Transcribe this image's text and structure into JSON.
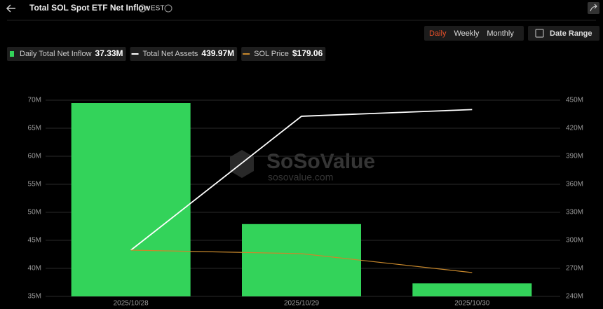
{
  "header": {
    "title": "Total SOL Spot ETF Net Inflow",
    "timezone": "EST"
  },
  "controls": {
    "periods": [
      "Daily",
      "Weekly",
      "Monthly"
    ],
    "active_period": "Daily",
    "date_range": "Date Range"
  },
  "watermark": {
    "brand": "SoSoValue",
    "url": "sosovalue.com"
  },
  "chart_data": {
    "type": "combo",
    "categories": [
      "2025/10/28",
      "2025/10/29",
      "2025/10/30"
    ],
    "series": [
      {
        "name": "Daily Total Net Inflow",
        "type": "bar",
        "color": "#33d35a",
        "axis": "y",
        "values": [
          69500000,
          47900000,
          37330000
        ],
        "value_labels": [
          null,
          null,
          "37.33M"
        ]
      },
      {
        "name": "Total Net Assets",
        "type": "line",
        "color": "#ffffff",
        "axis": "y2",
        "values": [
          289500000,
          432800000,
          439970000
        ],
        "value_labels": [
          null,
          null,
          "439.97M"
        ]
      },
      {
        "name": "SOL Price",
        "type": "line",
        "color": "#c8882c",
        "axis": "y3",
        "values": [
          195.0,
          192.5,
          179.06
        ],
        "value_labels": [
          null,
          null,
          "$179.06"
        ]
      }
    ],
    "ylim": [
      35000000,
      70000000
    ],
    "yticks": [
      {
        "value": 35000000,
        "label": "35M"
      },
      {
        "value": 40000000,
        "label": "40M"
      },
      {
        "value": 45000000,
        "label": "45M"
      },
      {
        "value": 50000000,
        "label": "50M"
      },
      {
        "value": 55000000,
        "label": "55M"
      },
      {
        "value": 60000000,
        "label": "60M"
      },
      {
        "value": 65000000,
        "label": "65M"
      },
      {
        "value": 70000000,
        "label": "70M"
      }
    ],
    "y2lim": [
      240000000,
      450000000
    ],
    "y2ticks": [
      {
        "value": 240000000,
        "label": "240M"
      },
      {
        "value": 270000000,
        "label": "270M"
      },
      {
        "value": 300000000,
        "label": "300M"
      },
      {
        "value": 330000000,
        "label": "330M"
      },
      {
        "value": 360000000,
        "label": "360M"
      },
      {
        "value": 390000000,
        "label": "390M"
      },
      {
        "value": 420000000,
        "label": "420M"
      },
      {
        "value": 450000000,
        "label": "450M"
      }
    ],
    "grid": true
  }
}
